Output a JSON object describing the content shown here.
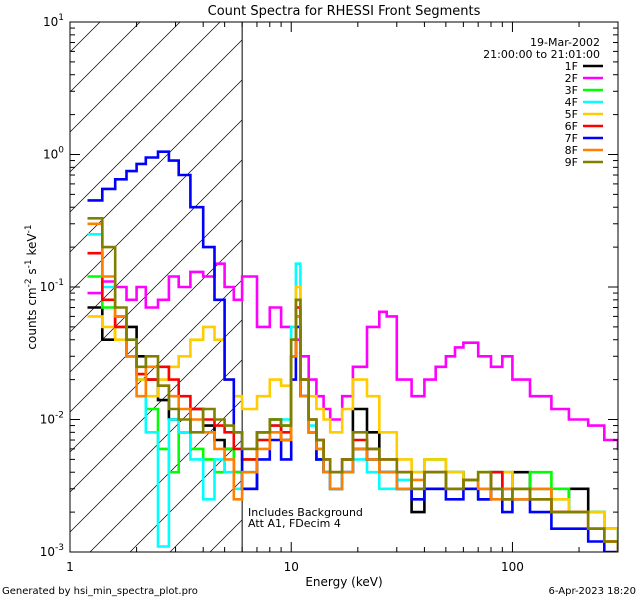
{
  "chart_data": {
    "type": "line",
    "title": "Count Spectra for RHESSI Front Segments",
    "xlabel": "Energy (keV)",
    "ylabel": "counts cm-2 s-1 keV-1",
    "xscale": "log",
    "yscale": "log",
    "xlim": [
      1,
      300
    ],
    "ylim": [
      0.001,
      10
    ],
    "x_ticks": [
      1,
      10,
      100
    ],
    "y_ticks": [
      0.001,
      0.01,
      0.1,
      1,
      10
    ],
    "x_tick_labels": [
      "1",
      "10",
      "100"
    ],
    "y_tick_labels": [
      {
        "base": "10",
        "exp": "-3"
      },
      {
        "base": "10",
        "exp": "-2"
      },
      {
        "base": "10",
        "exp": "-1"
      },
      {
        "base": "10",
        "exp": "0"
      },
      {
        "base": "10",
        "exp": "1"
      }
    ],
    "hatched_region_max_x": 6,
    "legend_placement": "top-right",
    "date_label": "19-Mar-2002",
    "time_label": "21:00:00 to 21:01:00",
    "annotations": [
      "Includes Background",
      "Att A1, FDecim 4"
    ],
    "footer_left": "Generated by hsi_min_spectra_plot.pro",
    "footer_right": "6-Apr-2023 18:20",
    "series": [
      {
        "name": "1F",
        "color": "#000000",
        "x": [
          1.2,
          1.4,
          1.6,
          1.8,
          2.0,
          2.2,
          2.5,
          2.8,
          3.1,
          3.5,
          4.0,
          4.5,
          5.0,
          5.5,
          6.0,
          7.0,
          8.0,
          9.0,
          10.0,
          10.5,
          11.0,
          12.0,
          13.0,
          14.0,
          15.0,
          17.0,
          19.0,
          22.0,
          25.0,
          30.0,
          35.0,
          40.0,
          50.0,
          60.0,
          70.0,
          80.0,
          90.0,
          100,
          120,
          150,
          180,
          220,
          260,
          300
        ],
        "y": [
          0.07,
          0.04,
          0.06,
          0.05,
          0.03,
          0.02,
          0.014,
          0.01,
          0.008,
          0.012,
          0.009,
          0.007,
          0.006,
          0.004,
          0.003,
          0.008,
          0.01,
          0.007,
          0.03,
          0.06,
          0.015,
          0.008,
          0.005,
          0.004,
          0.003,
          0.005,
          0.012,
          0.008,
          0.004,
          0.003,
          0.002,
          0.003,
          0.004,
          0.003,
          0.0025,
          0.004,
          0.003,
          0.004,
          0.003,
          0.002,
          0.003,
          0.002,
          0.0015,
          0.0012
        ]
      },
      {
        "name": "2F",
        "color": "#ff00ff",
        "x": [
          1.2,
          1.4,
          1.6,
          1.8,
          2.0,
          2.2,
          2.5,
          2.8,
          3.1,
          3.5,
          4.0,
          4.5,
          5.0,
          5.5,
          6.0,
          7.0,
          8.0,
          9.0,
          10.0,
          11.0,
          12.0,
          13.0,
          14.0,
          15.0,
          17.0,
          19.0,
          22.0,
          25.0,
          27.0,
          30.0,
          35.0,
          40.0,
          45.0,
          50.0,
          55.0,
          60.0,
          70.0,
          80.0,
          90.0,
          100,
          120,
          150,
          180,
          220,
          260,
          300
        ],
        "y": [
          0.09,
          0.11,
          0.1,
          0.08,
          0.1,
          0.07,
          0.08,
          0.12,
          0.1,
          0.13,
          0.12,
          0.15,
          0.1,
          0.08,
          0.12,
          0.05,
          0.07,
          0.05,
          0.04,
          0.03,
          0.02,
          0.015,
          0.012,
          0.01,
          0.015,
          0.025,
          0.05,
          0.065,
          0.06,
          0.02,
          0.015,
          0.02,
          0.025,
          0.03,
          0.035,
          0.038,
          0.03,
          0.025,
          0.03,
          0.02,
          0.015,
          0.012,
          0.01,
          0.009,
          0.007,
          0.006
        ]
      },
      {
        "name": "3F",
        "color": "#00ff00",
        "x": [
          1.2,
          1.4,
          1.6,
          1.8,
          2.0,
          2.2,
          2.5,
          2.8,
          3.1,
          3.5,
          4.0,
          4.5,
          5.0,
          5.5,
          6.0,
          7.0,
          8.0,
          9.0,
          10.0,
          10.5,
          11.0,
          12.0,
          13.0,
          14.0,
          15.0,
          17.0,
          19.0,
          22.0,
          25.0,
          30.0,
          35.0,
          40.0,
          50.0,
          60.0,
          70.0,
          80.0,
          90.0,
          100,
          120,
          150,
          180,
          220,
          260,
          300
        ],
        "y": [
          0.12,
          0.07,
          0.05,
          0.03,
          0.02,
          0.012,
          0.006,
          0.004,
          0.008,
          0.006,
          0.005,
          0.004,
          0.006,
          0.004,
          0.005,
          0.008,
          0.01,
          0.009,
          0.04,
          0.08,
          0.02,
          0.01,
          0.006,
          0.004,
          0.003,
          0.004,
          0.006,
          0.005,
          0.004,
          0.003,
          0.004,
          0.005,
          0.004,
          0.003,
          0.004,
          0.003,
          0.004,
          0.003,
          0.004,
          0.003,
          0.002,
          0.002,
          0.0015,
          0.0012
        ]
      },
      {
        "name": "4F",
        "color": "#00ffff",
        "x": [
          1.2,
          1.4,
          1.6,
          1.8,
          2.0,
          2.2,
          2.5,
          2.8,
          3.1,
          3.5,
          4.0,
          4.5,
          5.0,
          5.5,
          6.0,
          7.0,
          8.0,
          9.0,
          10.0,
          10.5,
          11.0,
          12.0,
          13.0,
          14.0,
          15.0,
          17.0,
          19.0,
          22.0,
          25.0,
          30.0,
          35.0,
          40.0,
          50.0,
          60.0,
          70.0,
          80.0,
          90.0,
          100,
          120,
          150,
          180,
          220,
          260,
          300
        ],
        "y": [
          0.25,
          0.1,
          0.06,
          0.04,
          0.02,
          0.008,
          0.0011,
          0.01,
          0.008,
          0.005,
          0.0025,
          0.005,
          0.004,
          0.003,
          0.004,
          0.007,
          0.009,
          0.01,
          0.05,
          0.15,
          0.02,
          0.009,
          0.005,
          0.004,
          0.003,
          0.004,
          0.005,
          0.004,
          0.003,
          0.0035,
          0.003,
          0.004,
          0.003,
          0.0035,
          0.003,
          0.004,
          0.003,
          0.0025,
          0.003,
          0.0025,
          0.002,
          0.002,
          0.0015,
          0.0012
        ]
      },
      {
        "name": "5F",
        "color": "#ffcc00",
        "x": [
          1.2,
          1.4,
          1.6,
          1.8,
          2.0,
          2.2,
          2.5,
          2.8,
          3.1,
          3.5,
          4.0,
          4.5,
          5.0,
          5.5,
          6.0,
          7.0,
          8.0,
          9.0,
          10.0,
          10.5,
          11.0,
          12.0,
          13.0,
          14.0,
          15.0,
          17.0,
          19.0,
          22.0,
          25.0,
          30.0,
          35.0,
          40.0,
          50.0,
          60.0,
          70.0,
          80.0,
          90.0,
          100,
          120,
          150,
          180,
          220,
          260,
          300
        ],
        "y": [
          0.06,
          0.05,
          0.04,
          0.03,
          0.02,
          0.015,
          0.02,
          0.025,
          0.03,
          0.04,
          0.05,
          0.04,
          0.02,
          0.015,
          0.012,
          0.015,
          0.02,
          0.018,
          0.04,
          0.1,
          0.02,
          0.015,
          0.012,
          0.01,
          0.008,
          0.012,
          0.02,
          0.015,
          0.008,
          0.005,
          0.004,
          0.005,
          0.004,
          0.003,
          0.004,
          0.003,
          0.004,
          0.003,
          0.003,
          0.0025,
          0.002,
          0.002,
          0.0015,
          0.0012
        ]
      },
      {
        "name": "6F",
        "color": "#ff0000",
        "x": [
          1.2,
          1.4,
          1.6,
          1.8,
          2.0,
          2.2,
          2.5,
          2.8,
          3.1,
          3.5,
          4.0,
          4.5,
          5.0,
          5.5,
          6.0,
          7.0,
          8.0,
          9.0,
          10.0,
          10.5,
          11.0,
          12.0,
          13.0,
          14.0,
          15.0,
          17.0,
          19.0,
          22.0,
          25.0,
          30.0,
          35.0,
          40.0,
          50.0,
          60.0,
          70.0,
          80.0,
          90.0,
          100,
          120,
          150,
          180,
          220,
          260,
          300
        ],
        "y": [
          0.18,
          0.08,
          0.05,
          0.03,
          0.022,
          0.02,
          0.025,
          0.02,
          0.015,
          0.012,
          0.01,
          0.009,
          0.008,
          0.006,
          0.005,
          0.007,
          0.009,
          0.008,
          0.03,
          0.07,
          0.02,
          0.01,
          0.007,
          0.005,
          0.004,
          0.005,
          0.007,
          0.006,
          0.005,
          0.004,
          0.003,
          0.004,
          0.003,
          0.0035,
          0.003,
          0.004,
          0.0025,
          0.003,
          0.0025,
          0.002,
          0.002,
          0.0015,
          0.0012,
          0.001
        ]
      },
      {
        "name": "7F",
        "color": "#0000ff",
        "x": [
          1.2,
          1.4,
          1.6,
          1.8,
          2.0,
          2.2,
          2.5,
          2.8,
          3.1,
          3.5,
          4.0,
          4.5,
          5.0,
          5.5,
          6.0,
          7.0,
          8.0,
          9.0,
          10.0,
          10.5,
          11.0,
          12.0,
          13.0,
          14.0,
          15.0,
          17.0,
          19.0,
          22.0,
          25.0,
          30.0,
          35.0,
          40.0,
          50.0,
          60.0,
          70.0,
          80.0,
          90.0,
          100,
          120,
          150,
          180,
          220,
          260,
          300
        ],
        "y": [
          0.45,
          0.55,
          0.65,
          0.75,
          0.85,
          0.95,
          1.05,
          0.9,
          0.7,
          0.4,
          0.2,
          0.08,
          0.02,
          0.008,
          0.003,
          0.005,
          0.007,
          0.005,
          0.02,
          0.05,
          0.015,
          0.008,
          0.005,
          0.004,
          0.003,
          0.004,
          0.006,
          0.005,
          0.004,
          0.003,
          0.0025,
          0.003,
          0.0025,
          0.003,
          0.0025,
          0.003,
          0.002,
          0.0025,
          0.002,
          0.0015,
          0.0015,
          0.0012,
          0.001,
          0.001
        ]
      },
      {
        "name": "8F",
        "color": "#ff8000",
        "x": [
          1.2,
          1.4,
          1.6,
          1.8,
          2.0,
          2.2,
          2.5,
          2.8,
          3.1,
          3.5,
          4.0,
          4.5,
          5.0,
          5.5,
          6.0,
          7.0,
          8.0,
          9.0,
          10.0,
          10.5,
          11.0,
          12.0,
          13.0,
          14.0,
          15.0,
          17.0,
          19.0,
          22.0,
          25.0,
          30.0,
          35.0,
          40.0,
          50.0,
          60.0,
          70.0,
          80.0,
          90.0,
          100,
          120,
          150,
          180,
          220,
          260,
          300
        ],
        "y": [
          0.3,
          0.12,
          0.06,
          0.03,
          0.015,
          0.025,
          0.018,
          0.015,
          0.012,
          0.01,
          0.008,
          0.006,
          0.005,
          0.0025,
          0.004,
          0.006,
          0.008,
          0.007,
          0.03,
          0.06,
          0.015,
          0.008,
          0.006,
          0.004,
          0.003,
          0.004,
          0.006,
          0.005,
          0.004,
          0.003,
          0.0035,
          0.004,
          0.003,
          0.0035,
          0.003,
          0.0025,
          0.003,
          0.0025,
          0.003,
          0.002,
          0.002,
          0.0015,
          0.0012,
          0.001
        ]
      },
      {
        "name": "9F",
        "color": "#808000",
        "x": [
          1.2,
          1.4,
          1.6,
          1.8,
          2.0,
          2.2,
          2.5,
          2.8,
          3.1,
          3.5,
          4.0,
          4.5,
          5.0,
          5.5,
          6.0,
          7.0,
          8.0,
          9.0,
          10.0,
          10.5,
          11.0,
          12.0,
          13.0,
          14.0,
          15.0,
          17.0,
          19.0,
          22.0,
          25.0,
          30.0,
          35.0,
          40.0,
          50.0,
          60.0,
          70.0,
          80.0,
          90.0,
          100,
          120,
          150,
          180,
          220,
          260,
          300
        ],
        "y": [
          0.33,
          0.2,
          0.07,
          0.04,
          0.025,
          0.03,
          0.018,
          0.012,
          0.01,
          0.008,
          0.012,
          0.01,
          0.009,
          0.008,
          0.006,
          0.008,
          0.01,
          0.009,
          0.04,
          0.08,
          0.02,
          0.01,
          0.007,
          0.005,
          0.004,
          0.005,
          0.008,
          0.006,
          0.005,
          0.004,
          0.003,
          0.004,
          0.003,
          0.0035,
          0.004,
          0.003,
          0.0025,
          0.003,
          0.0025,
          0.002,
          0.002,
          0.0015,
          0.0012,
          0.001
        ]
      }
    ]
  }
}
